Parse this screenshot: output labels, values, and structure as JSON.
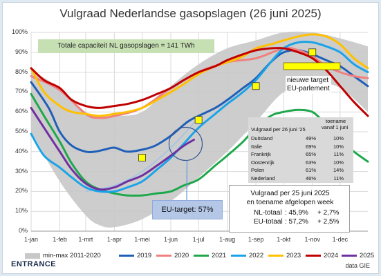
{
  "title": "Vulgraad Nederlandse gasopslagen (26 juni 2025)",
  "capacity_note": "Totale capaciteit NL gasopslagen = 141 TWh",
  "eu_target_label": "EU-target: 57%",
  "new_target_note": [
    "nieuwe target",
    "EU-parlement"
  ],
  "fill_table": {
    "header_label": "Vulgraad per 26 juni '25",
    "header_growth": [
      "toename",
      "vanaf 1 juni"
    ],
    "rows": [
      {
        "country": "Duitsland",
        "fill": "49%",
        "growth": "10%"
      },
      {
        "country": "Italie",
        "fill": "69%",
        "growth": "10%"
      },
      {
        "country": "Frankrijk",
        "fill": "65%",
        "growth": "11%"
      },
      {
        "country": "Oostenrijk",
        "fill": "63%",
        "growth": "10%"
      },
      {
        "country": "Polen",
        "fill": "61%",
        "growth": "14%"
      },
      {
        "country": "Nederland",
        "fill": "46%",
        "growth": "11%"
      }
    ]
  },
  "summary": {
    "line1": "Vulgraad per 25 juni 2025",
    "line2": "en toename afgelopen week",
    "nl_label": "NL-totaal",
    "nl_value": ": 45,9%",
    "nl_delta": "+ 2,7%",
    "eu_label": "EU-totaal",
    "eu_value": ": 57,2%",
    "eu_delta": "+ 2,5%"
  },
  "brand": "ENTRANCE",
  "source": "data GIE",
  "colors": {
    "band": "#c8c8c8",
    "2019": "#1f5fb8",
    "2020": "#f08080",
    "2021": "#1ea84b",
    "2022": "#1aa3e8",
    "2023": "#ffc000",
    "2024": "#c00000",
    "2025": "#7030a0",
    "target_marker": "#ffff00"
  },
  "chart_data": {
    "type": "line",
    "title": "Vulgraad Nederlandse gasopslagen (26 juni 2025)",
    "xlabel": "",
    "ylabel": "",
    "ylim": [
      0,
      100
    ],
    "y_ticks": [
      "0%",
      "10%",
      "20%",
      "30%",
      "40%",
      "50%",
      "60%",
      "70%",
      "80%",
      "90%",
      "100%"
    ],
    "x_ticks": [
      "1-jan",
      "1-feb",
      "1-mrt",
      "1-apr",
      "1-mei",
      "1-jun",
      "1-jul",
      "1-aug",
      "1-sep",
      "1-okt",
      "1-nov",
      "1-dec"
    ],
    "grid": true,
    "legend_position": "bottom",
    "x_day_of_year": [
      1,
      32,
      60,
      91,
      121,
      152,
      182,
      213,
      244,
      274,
      305,
      335
    ],
    "band": {
      "name": "min-max 2011-2020",
      "x": [
        1,
        32,
        60,
        75,
        91,
        121,
        152,
        182,
        213,
        244,
        274,
        305,
        335,
        365
      ],
      "min": [
        50,
        25,
        8,
        3,
        2,
        6,
        15,
        27,
        40,
        55,
        70,
        75,
        72,
        60
      ],
      "max": [
        81,
        72,
        60,
        58,
        58,
        60,
        73,
        84,
        92,
        96,
        100,
        100,
        97,
        93
      ]
    },
    "series": [
      {
        "name": "2019",
        "x": [
          1,
          20,
          32,
          45,
          60,
          70,
          80,
          91,
          105,
          121,
          135,
          152,
          170,
          182,
          200,
          213,
          230,
          244,
          260,
          274,
          290,
          305,
          320,
          335,
          350,
          365
        ],
        "y": [
          75,
          62,
          50,
          43,
          40,
          40,
          41,
          42,
          40,
          41,
          43,
          48,
          55,
          58,
          62,
          66,
          72,
          77,
          85,
          90,
          91,
          89,
          86,
          83,
          78,
          73
        ]
      },
      {
        "name": "2020",
        "x": [
          1,
          32,
          60,
          75,
          91,
          121,
          152,
          182,
          213,
          244,
          274,
          290,
          305,
          320,
          335,
          350,
          365
        ],
        "y": [
          78,
          71,
          59,
          57,
          58,
          62,
          72,
          80,
          85,
          87,
          92,
          91,
          88,
          83,
          80,
          78,
          77
        ]
      },
      {
        "name": "2021",
        "x": [
          1,
          15,
          32,
          45,
          60,
          75,
          91,
          105,
          121,
          137,
          152,
          166,
          182,
          200,
          213,
          230,
          244,
          260,
          274,
          290,
          305,
          315,
          325,
          335,
          350,
          365
        ],
        "y": [
          69,
          58,
          45,
          34,
          25,
          21,
          19,
          18,
          18,
          19,
          20,
          23,
          26,
          33,
          38,
          45,
          52,
          58,
          60,
          61,
          60,
          56,
          52,
          46,
          40,
          35
        ]
      },
      {
        "name": "2022",
        "x": [
          1,
          15,
          32,
          45,
          60,
          75,
          91,
          105,
          121,
          137,
          152,
          166,
          182,
          200,
          213,
          230,
          244,
          260,
          274,
          290,
          305,
          320,
          335,
          350,
          365
        ],
        "y": [
          49,
          38,
          32,
          27,
          22,
          20,
          20,
          22,
          25,
          31,
          37,
          44,
          52,
          59,
          64,
          70,
          76,
          85,
          92,
          95,
          95,
          93,
          90,
          84,
          80
        ]
      },
      {
        "name": "2023",
        "x": [
          1,
          15,
          32,
          45,
          60,
          75,
          91,
          105,
          121,
          137,
          152,
          166,
          182,
          200,
          213,
          230,
          244,
          260,
          274,
          290,
          305,
          320,
          335,
          350,
          365
        ],
        "y": [
          82,
          70,
          63,
          60,
          59,
          58,
          59,
          60,
          62,
          66,
          70,
          74,
          79,
          83,
          85,
          88,
          92,
          94,
          96,
          98,
          99,
          98,
          94,
          87,
          82
        ]
      },
      {
        "name": "2024",
        "x": [
          1,
          15,
          32,
          45,
          60,
          75,
          91,
          105,
          121,
          137,
          152,
          166,
          182,
          200,
          213,
          230,
          244,
          260,
          274,
          290,
          305,
          320,
          335,
          350,
          365
        ],
        "y": [
          82,
          76,
          72,
          66,
          63,
          62,
          63,
          64,
          66,
          69,
          72,
          76,
          80,
          83,
          86,
          89,
          91,
          92,
          92,
          90,
          87,
          81,
          73,
          65,
          58
        ]
      },
      {
        "name": "2025",
        "x": [
          1,
          15,
          32,
          45,
          60,
          75,
          91,
          105,
          121,
          137,
          152,
          166,
          177
        ],
        "y": [
          62,
          52,
          40,
          31,
          24,
          21,
          22,
          25,
          28,
          33,
          38,
          43,
          46
        ]
      }
    ],
    "eu_target_trend": {
      "x": [
        60,
        91,
        121,
        152,
        182
      ],
      "y": [
        20,
        23,
        30,
        42,
        57
      ]
    },
    "target_markers": [
      {
        "x": 121,
        "y": 37
      },
      {
        "x": 182,
        "y": 56
      },
      {
        "x": 244,
        "y": 73
      },
      {
        "x": 305,
        "y": 90
      }
    ],
    "new_target": {
      "x_start": 274,
      "x_end": 335,
      "y": 83
    }
  }
}
